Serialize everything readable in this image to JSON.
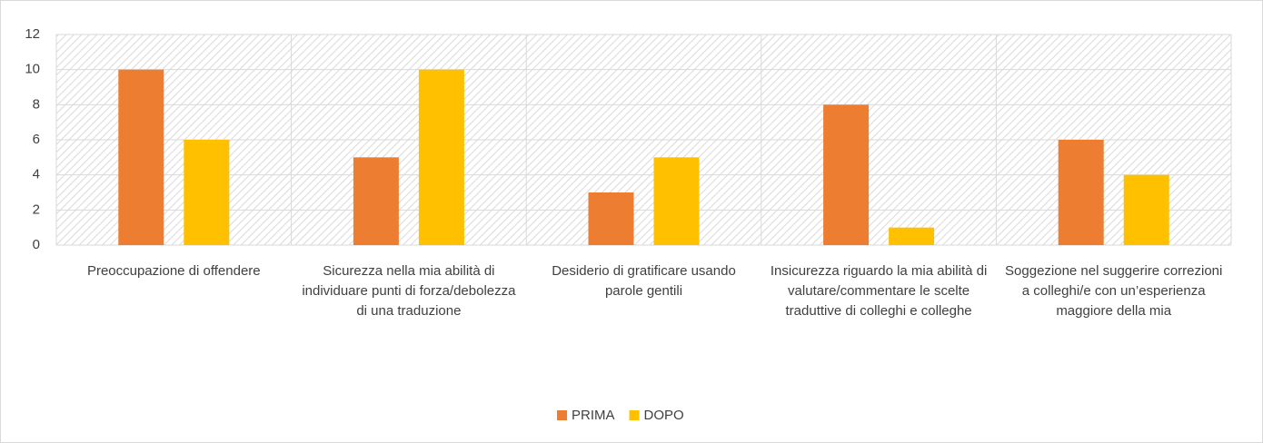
{
  "chart_data": {
    "type": "bar",
    "categories": [
      "Preoccupazione di offendere",
      "Sicurezza nella mia abilità di individuare punti di forza/debolezza di una traduzione",
      "Desiderio di gratificare usando parole gentili",
      "Insicurezza riguardo la mia abilità di valutare/commentare le scelte traduttive di colleghi e colleghe",
      "Soggezione nel suggerire correzioni a colleghi/e con un’esperienza maggiore della mia"
    ],
    "series": [
      {
        "name": "PRIMA",
        "color": "#ED7D31",
        "values": [
          10,
          5,
          3,
          8,
          6
        ]
      },
      {
        "name": "DOPO",
        "color": "#FFC000",
        "values": [
          6,
          10,
          5,
          1,
          4
        ]
      }
    ],
    "ylim": [
      0,
      12
    ],
    "yticks": [
      0,
      2,
      4,
      6,
      8,
      10,
      12
    ],
    "grid": true,
    "legend": "bottom"
  }
}
